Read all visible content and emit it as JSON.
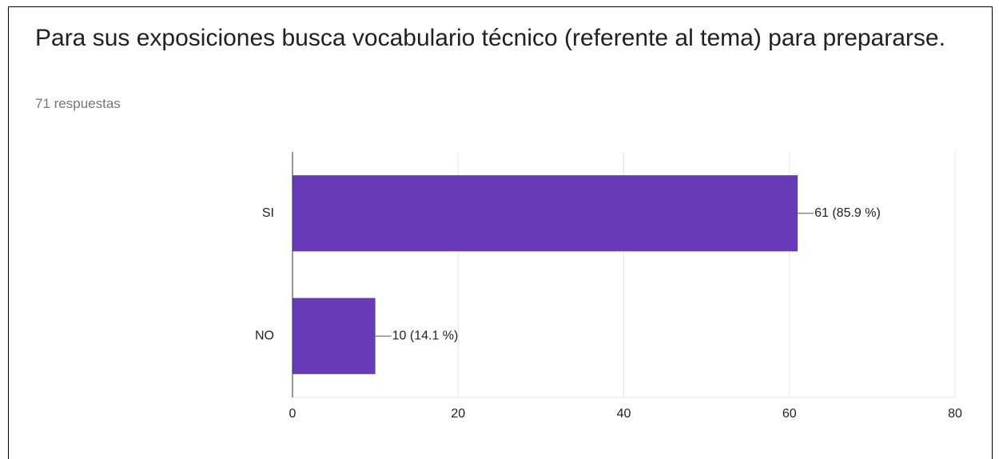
{
  "chart_data": {
    "type": "hbar",
    "title": "Para sus exposiciones busca vocabulario técnico (referente al tema) para prepararse.",
    "subtitle": "71 respuestas",
    "categories": [
      "SI",
      "NO"
    ],
    "values": [
      61,
      10
    ],
    "value_labels": [
      "61 (85.9 %)",
      "10 (14.1 %)"
    ],
    "color": "#673ab7",
    "xlim": [
      0,
      80
    ],
    "xticks": [
      0,
      20,
      40,
      60,
      80
    ],
    "grid": true
  }
}
